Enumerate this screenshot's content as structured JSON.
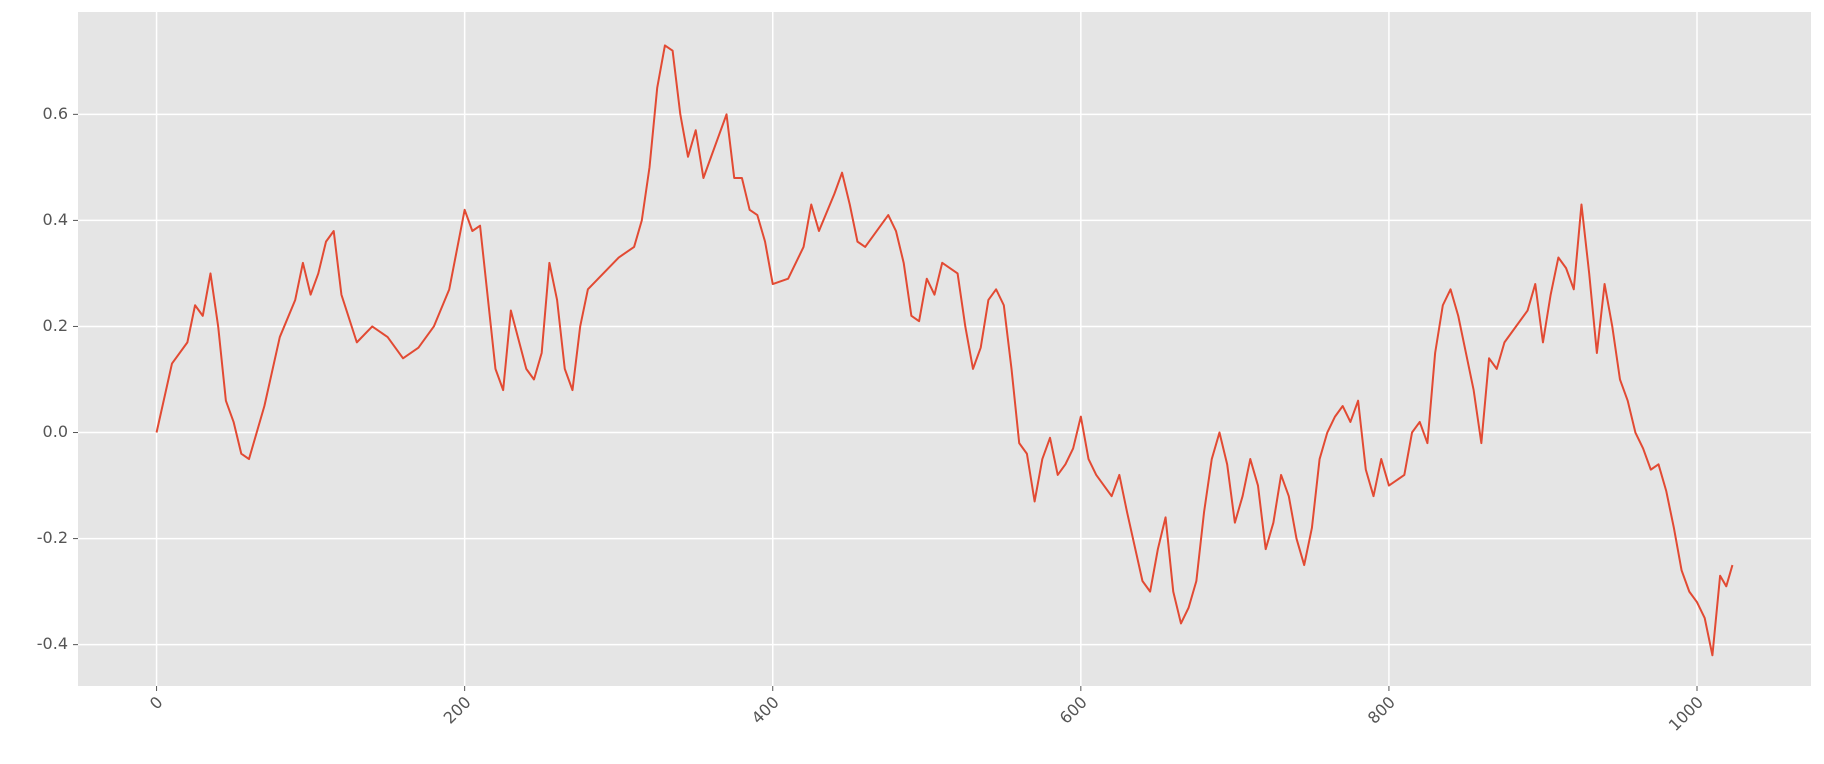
{
  "chart_data": {
    "type": "line",
    "x": [
      0,
      10,
      20,
      25,
      30,
      35,
      40,
      45,
      50,
      55,
      60,
      65,
      70,
      80,
      90,
      95,
      100,
      105,
      110,
      115,
      120,
      130,
      140,
      150,
      160,
      170,
      180,
      190,
      200,
      205,
      210,
      220,
      225,
      230,
      240,
      245,
      250,
      255,
      260,
      265,
      270,
      275,
      280,
      290,
      300,
      310,
      315,
      320,
      325,
      330,
      335,
      340,
      345,
      350,
      355,
      360,
      365,
      370,
      375,
      380,
      385,
      390,
      395,
      400,
      410,
      420,
      425,
      430,
      440,
      445,
      450,
      455,
      460,
      470,
      475,
      480,
      485,
      490,
      495,
      500,
      505,
      510,
      520,
      525,
      530,
      535,
      540,
      545,
      550,
      555,
      560,
      565,
      570,
      575,
      580,
      585,
      590,
      595,
      600,
      605,
      610,
      620,
      625,
      630,
      640,
      645,
      650,
      655,
      660,
      665,
      670,
      675,
      680,
      685,
      690,
      695,
      700,
      705,
      710,
      715,
      720,
      725,
      730,
      735,
      740,
      745,
      750,
      755,
      760,
      765,
      770,
      775,
      780,
      785,
      790,
      795,
      800,
      810,
      815,
      820,
      825,
      830,
      835,
      840,
      845,
      850,
      855,
      860,
      865,
      870,
      875,
      880,
      890,
      895,
      900,
      905,
      910,
      915,
      920,
      925,
      930,
      935,
      940,
      945,
      950,
      955,
      960,
      965,
      970,
      975,
      980,
      985,
      990,
      995,
      1000,
      1005,
      1010,
      1015,
      1019,
      1023
    ],
    "series": [
      {
        "color": "#e24a33",
        "values": [
          0.0,
          0.13,
          0.17,
          0.24,
          0.22,
          0.3,
          0.2,
          0.06,
          0.02,
          -0.04,
          -0.05,
          0.0,
          0.05,
          0.18,
          0.25,
          0.32,
          0.26,
          0.3,
          0.36,
          0.38,
          0.26,
          0.17,
          0.2,
          0.18,
          0.14,
          0.16,
          0.2,
          0.27,
          0.42,
          0.38,
          0.39,
          0.12,
          0.08,
          0.23,
          0.12,
          0.1,
          0.15,
          0.32,
          0.25,
          0.12,
          0.08,
          0.2,
          0.27,
          0.3,
          0.33,
          0.35,
          0.4,
          0.5,
          0.65,
          0.73,
          0.72,
          0.6,
          0.52,
          0.57,
          0.48,
          0.52,
          0.56,
          0.6,
          0.48,
          0.48,
          0.42,
          0.41,
          0.36,
          0.28,
          0.29,
          0.35,
          0.43,
          0.38,
          0.45,
          0.49,
          0.43,
          0.36,
          0.35,
          0.39,
          0.41,
          0.38,
          0.32,
          0.22,
          0.21,
          0.29,
          0.26,
          0.32,
          0.3,
          0.2,
          0.12,
          0.16,
          0.25,
          0.27,
          0.24,
          0.12,
          -0.02,
          -0.04,
          -0.13,
          -0.05,
          -0.01,
          -0.08,
          -0.06,
          -0.03,
          0.03,
          -0.05,
          -0.08,
          -0.12,
          -0.08,
          -0.15,
          -0.28,
          -0.3,
          -0.22,
          -0.16,
          -0.3,
          -0.36,
          -0.33,
          -0.28,
          -0.15,
          -0.05,
          0.0,
          -0.06,
          -0.17,
          -0.12,
          -0.05,
          -0.1,
          -0.22,
          -0.17,
          -0.08,
          -0.12,
          -0.2,
          -0.25,
          -0.18,
          -0.05,
          0.0,
          0.03,
          0.05,
          0.02,
          0.06,
          -0.07,
          -0.12,
          -0.05,
          -0.1,
          -0.08,
          0.0,
          0.02,
          -0.02,
          0.15,
          0.24,
          0.27,
          0.22,
          0.15,
          0.08,
          -0.02,
          0.14,
          0.12,
          0.17,
          0.19,
          0.23,
          0.28,
          0.17,
          0.26,
          0.33,
          0.31,
          0.27,
          0.43,
          0.3,
          0.15,
          0.28,
          0.2,
          0.1,
          0.06,
          0.0,
          -0.03,
          -0.07,
          -0.06,
          -0.11,
          -0.18,
          -0.26,
          -0.3,
          -0.32,
          -0.35,
          -0.42,
          -0.27,
          -0.29,
          -0.25
        ]
      }
    ],
    "xlim": [
      -51,
      1074
    ],
    "xticks": [
      0,
      200,
      400,
      600,
      800,
      1000
    ],
    "ylim": [
      -0.478,
      0.793
    ],
    "yticks": [
      -0.4,
      -0.2,
      {
        "value": 0,
        "label": "0.0"
      },
      0.2,
      0.4,
      0.6
    ],
    "grid": true
  }
}
